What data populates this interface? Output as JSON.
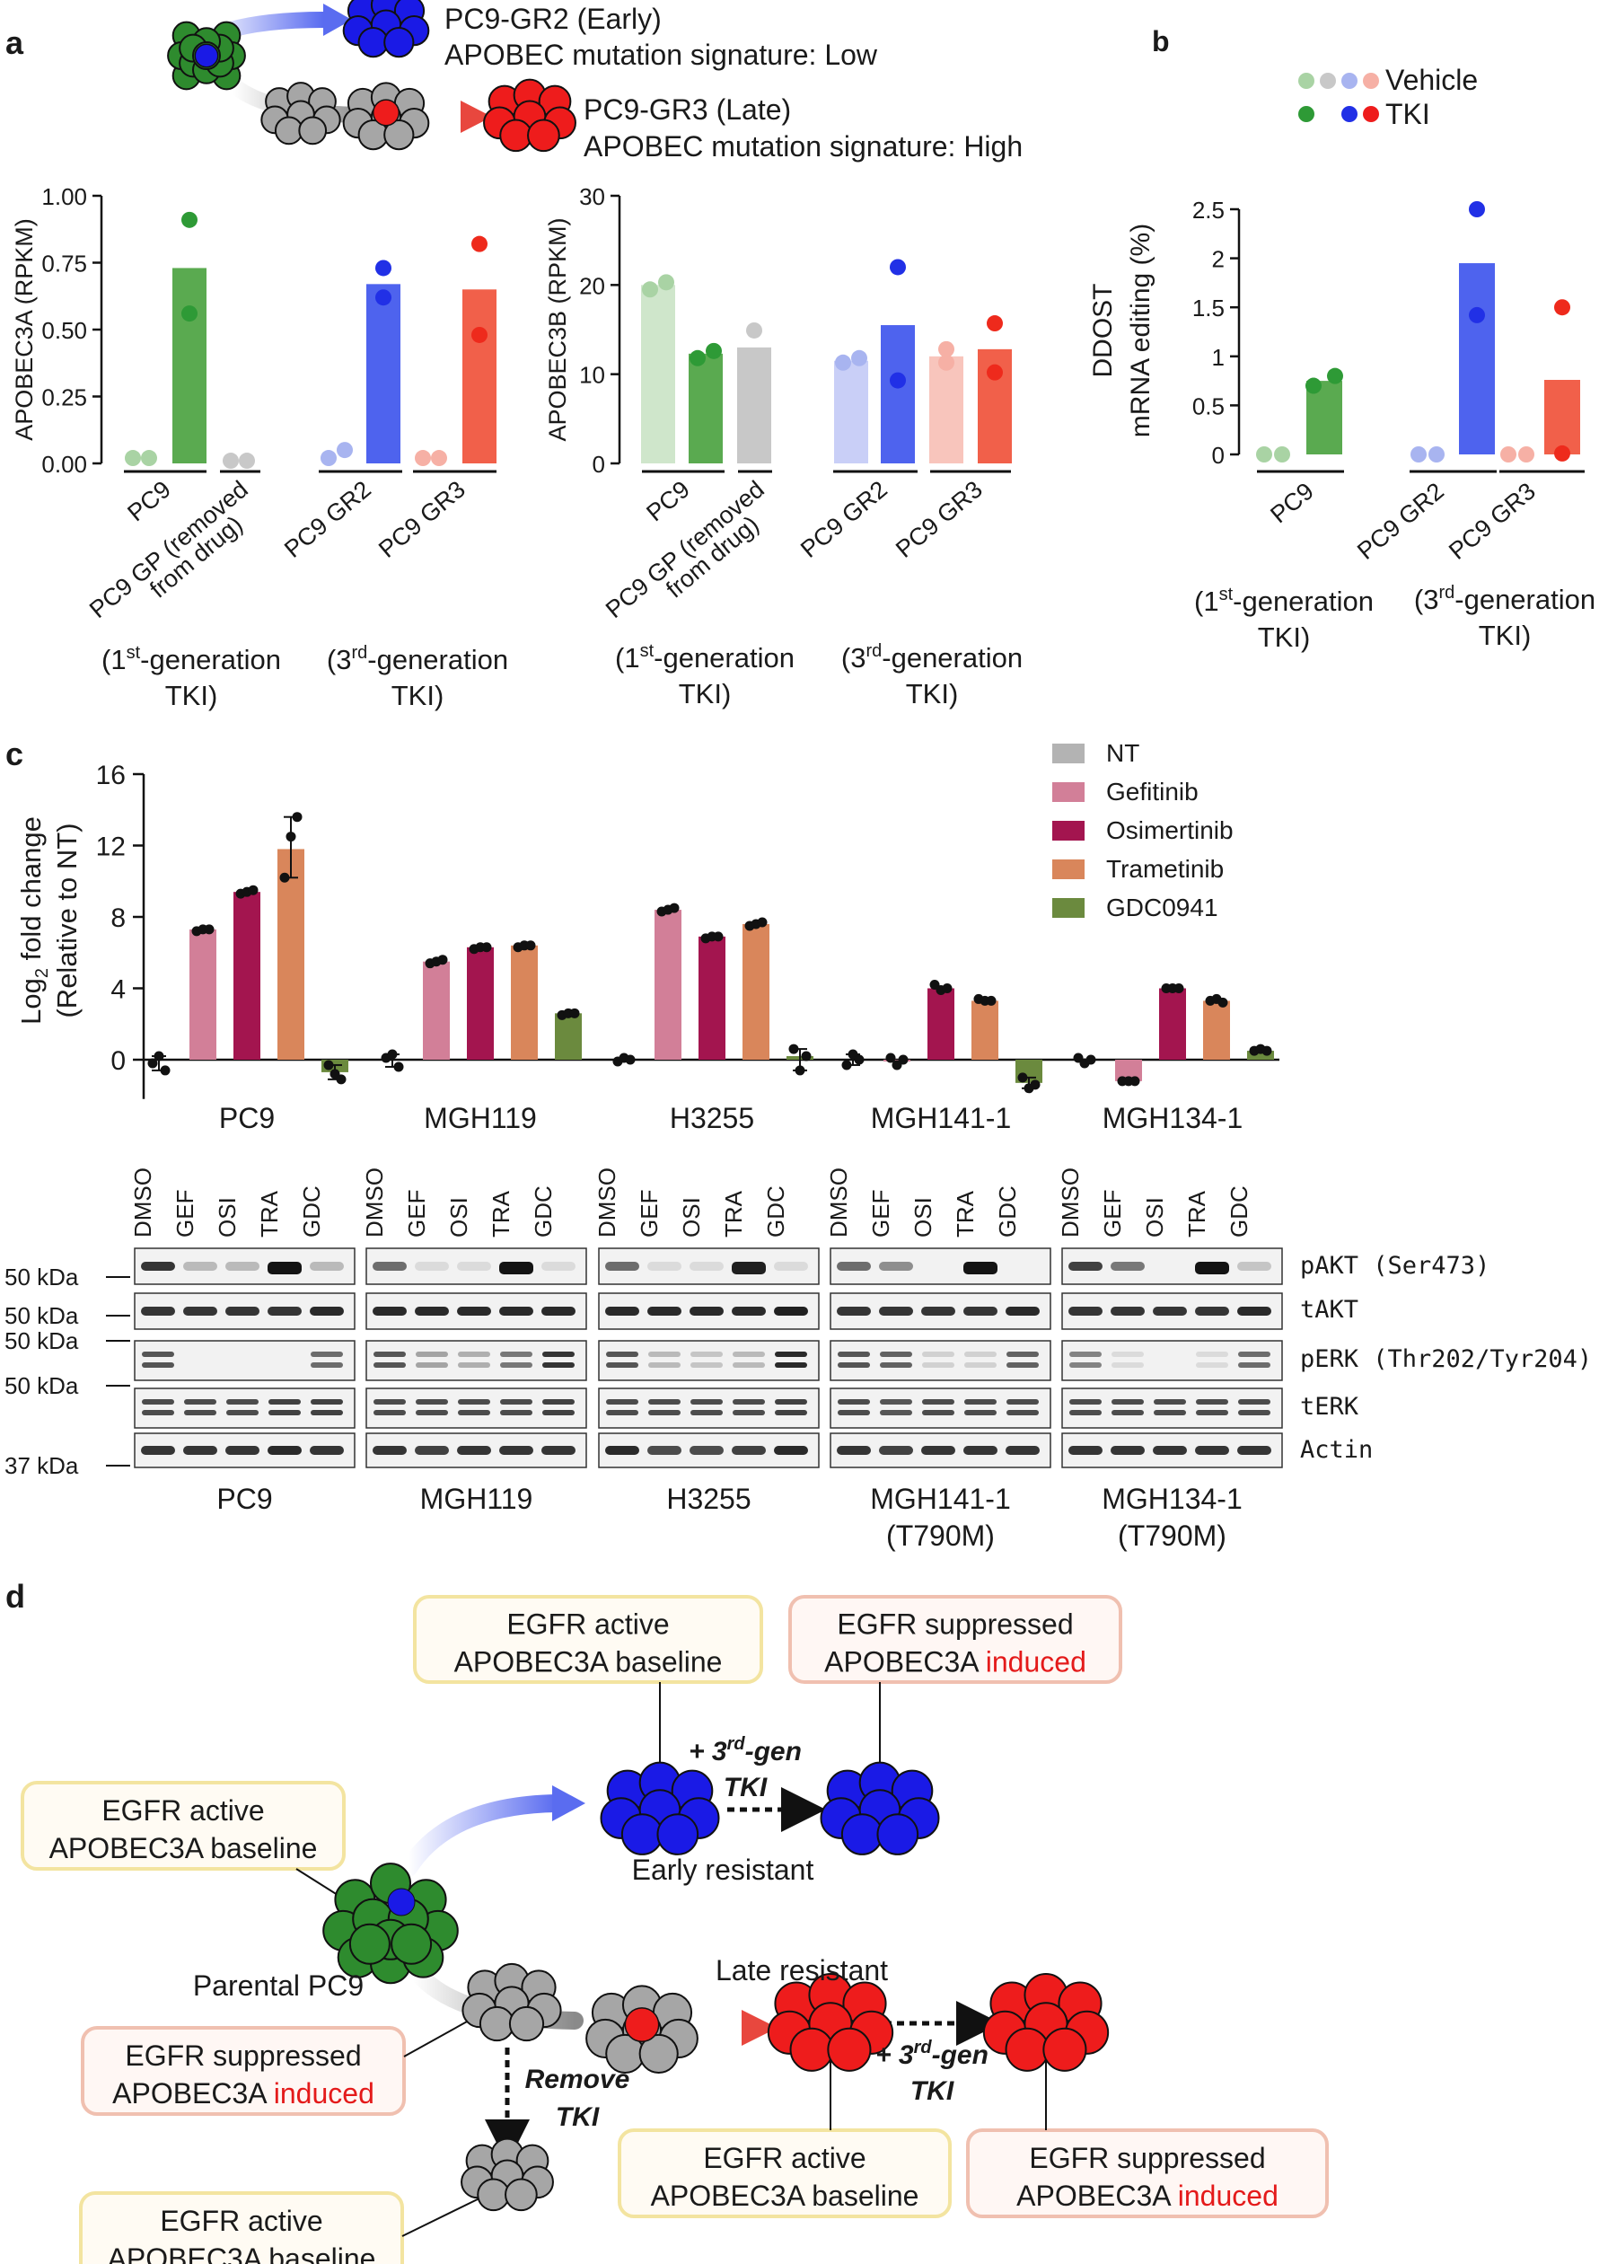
{
  "panel_labels": {
    "a": "a",
    "b": "b",
    "c": "c",
    "d": "d"
  },
  "schematic_a": {
    "early_title": "PC9-GR2 (Early)",
    "early_sig": "APOBEC mutation signature: Low",
    "late_title": "PC9-GR3 (Late)",
    "late_sig": "APOBEC mutation signature: High"
  },
  "legend_b": {
    "vehicle": "Vehicle",
    "tki": "TKI"
  },
  "groups": {
    "first_gen_line1": "(1",
    "first_gen_sup": "st",
    "first_gen_line1b": "-generation",
    "third_gen_line1": "(3",
    "third_gen_sup": "rd",
    "third_gen_line1b": "-generation",
    "tki_line2": "TKI)"
  },
  "chart_data": [
    {
      "type": "bar",
      "id": "a-left",
      "ylabel": "APOBEC3A (RPKM)",
      "ylim": [
        0,
        1.0
      ],
      "yticks": [
        "0.00",
        "0.25",
        "0.50",
        "0.75",
        "1.00"
      ],
      "categories": [
        "PC9",
        "PC9 GP (removed from drug)",
        "PC9 GR2",
        "PC9 GR3"
      ],
      "tick_labels": [
        "PC9",
        "PC9 GP (removed",
        "from drug)",
        "PC9 GR2",
        "PC9 GR3"
      ],
      "bars": [
        {
          "cat": "PC9",
          "cond": "Vehicle",
          "value": 0.0,
          "color": "#a9d3a4",
          "points": [
            0.02,
            0.02
          ]
        },
        {
          "cat": "PC9",
          "cond": "TKI",
          "value": 0.73,
          "color": "#5aaa50",
          "points": [
            0.56,
            0.91
          ]
        },
        {
          "cat": "PC9 GP",
          "cond": "Vehicle",
          "value": 0.0,
          "color": "#c8c8c8",
          "points": [
            0.01,
            0.01
          ]
        },
        {
          "cat": "PC9 GR2",
          "cond": "Vehicle",
          "value": 0.0,
          "color": "#a8b4f0",
          "points": [
            0.02,
            0.05
          ]
        },
        {
          "cat": "PC9 GR2",
          "cond": "TKI",
          "value": 0.67,
          "color": "#4e63ee",
          "points": [
            0.62,
            0.73
          ]
        },
        {
          "cat": "PC9 GR3",
          "cond": "Vehicle",
          "value": 0.0,
          "color": "#f6b0a5",
          "points": [
            0.02,
            0.02
          ]
        },
        {
          "cat": "PC9 GR3",
          "cond": "TKI",
          "value": 0.65,
          "color": "#f1604a",
          "points": [
            0.48,
            0.82
          ]
        }
      ]
    },
    {
      "type": "bar",
      "id": "a-right",
      "ylabel": "APOBEC3B (RPKM)",
      "ylim": [
        0,
        30
      ],
      "yticks": [
        "0",
        "10",
        "20",
        "30"
      ],
      "categories": [
        "PC9",
        "PC9 GP (removed from drug)",
        "PC9 GR2",
        "PC9 GR3"
      ],
      "tick_labels": [
        "PC9",
        "PC9 GP (removed",
        "from drug)",
        "PC9 GR2",
        "PC9 GR3"
      ],
      "bars": [
        {
          "cat": "PC9",
          "cond": "Vehicle",
          "value": 20,
          "color": "#cfe6cb",
          "points": [
            19.5,
            20.3
          ]
        },
        {
          "cat": "PC9",
          "cond": "TKI",
          "value": 12.3,
          "color": "#5aaa50",
          "points": [
            11.8,
            12.6
          ]
        },
        {
          "cat": "PC9 GP",
          "cond": "Vehicle",
          "value": 13.0,
          "color": "#c8c8c8",
          "points": [
            11.1,
            14.9
          ]
        },
        {
          "cat": "PC9 GR2",
          "cond": "Vehicle",
          "value": 11.5,
          "color": "#c9cff7",
          "points": [
            11.3,
            11.8
          ]
        },
        {
          "cat": "PC9 GR2",
          "cond": "TKI",
          "value": 15.5,
          "color": "#4e63ee",
          "points": [
            9.3,
            22.0
          ]
        },
        {
          "cat": "PC9 GR3",
          "cond": "Vehicle",
          "value": 12.0,
          "color": "#f8c5bc",
          "points": [
            11.3,
            12.8
          ]
        },
        {
          "cat": "PC9 GR3",
          "cond": "TKI",
          "value": 12.8,
          "color": "#f1604a",
          "points": [
            10.2,
            15.7
          ]
        }
      ]
    },
    {
      "type": "bar",
      "id": "b",
      "ylabel_line1": "DDOST",
      "ylabel_line2": "mRNA editing (%)",
      "ylim": [
        0,
        2.5
      ],
      "yticks": [
        "0",
        "0.5",
        "1",
        "1.5",
        "2",
        "2.5"
      ],
      "categories": [
        "PC9",
        "PC9 GR2",
        "PC9 GR3"
      ],
      "bars": [
        {
          "cat": "PC9",
          "cond": "Vehicle",
          "value": 0.0,
          "color": "#a9d3a4",
          "points": [
            0.0,
            0.0
          ]
        },
        {
          "cat": "PC9",
          "cond": "TKI",
          "value": 0.75,
          "color": "#5aaa50",
          "points": [
            0.7,
            0.8
          ]
        },
        {
          "cat": "PC9 GR2",
          "cond": "Vehicle",
          "value": 0.0,
          "color": "#a8b4f0",
          "points": [
            0.0,
            0.0
          ]
        },
        {
          "cat": "PC9 GR2",
          "cond": "TKI",
          "value": 1.95,
          "color": "#4e63ee",
          "points": [
            1.42,
            2.5
          ]
        },
        {
          "cat": "PC9 GR3",
          "cond": "Vehicle",
          "value": 0.0,
          "color": "#f6b0a5",
          "points": [
            0.0,
            0.0
          ]
        },
        {
          "cat": "PC9 GR3",
          "cond": "TKI",
          "value": 0.76,
          "color": "#f1604a",
          "points": [
            0.01,
            1.5
          ]
        }
      ]
    },
    {
      "type": "bar",
      "id": "c",
      "ylabel_line1": "Log",
      "ylabel_sub": "2",
      "ylabel_line1b": " fold change",
      "ylabel_line2": "(Relative to NT)",
      "ylim": [
        -2,
        16
      ],
      "yticks": [
        "0",
        "4",
        "8",
        "12",
        "16"
      ],
      "categories": [
        "PC9",
        "MGH119",
        "H3255",
        "MGH141-1",
        "MGH134-1"
      ],
      "legend": [
        "NT",
        "Gefitinib",
        "Osimertinib",
        "Trametinib",
        "GDC0941"
      ],
      "colors": [
        "#b3b3b3",
        "#d27f98",
        "#a3154f",
        "#d9865b",
        "#6b8a3e"
      ],
      "series": [
        {
          "name": "NT",
          "values": [
            0,
            0,
            0,
            0,
            0
          ]
        },
        {
          "name": "Gefitinib",
          "values": [
            7.3,
            5.5,
            8.4,
            -0.1,
            -1.2
          ]
        },
        {
          "name": "Osimertinib",
          "values": [
            9.4,
            6.3,
            6.9,
            4.0,
            4.0
          ]
        },
        {
          "name": "Trametinib",
          "values": [
            11.8,
            6.4,
            7.6,
            3.3,
            3.3
          ]
        },
        {
          "name": "GDC0941",
          "values": [
            -0.7,
            2.6,
            0.2,
            -1.3,
            0.5
          ]
        }
      ],
      "points": [
        [
          [
            -0.2,
            0.2,
            -0.6
          ],
          [
            7.2,
            7.3,
            7.3
          ],
          [
            9.3,
            9.4,
            9.5
          ],
          [
            10.2,
            12.5,
            13.6
          ],
          [
            -0.3,
            -0.8,
            -1.1
          ]
        ],
        [
          [
            0.1,
            0.3,
            -0.4
          ],
          [
            5.4,
            5.5,
            5.6
          ],
          [
            6.2,
            6.3,
            6.3
          ],
          [
            6.3,
            6.4,
            6.4
          ],
          [
            2.5,
            2.6,
            2.6
          ]
        ],
        [
          [
            -0.1,
            0.1,
            0.0
          ],
          [
            8.3,
            8.4,
            8.5
          ],
          [
            6.8,
            6.9,
            6.9
          ],
          [
            7.5,
            7.6,
            7.7
          ],
          [
            0.6,
            -0.6,
            0.2
          ]
        ],
        [
          [
            -0.3,
            0.3,
            0.0
          ],
          [
            0.1,
            -0.3,
            0.0
          ],
          [
            4.2,
            3.9,
            4.0
          ],
          [
            3.4,
            3.3,
            3.3
          ],
          [
            -1.0,
            -1.6,
            -1.4
          ]
        ],
        [
          [
            0.1,
            -0.2,
            0.0
          ],
          [
            -1.2,
            -1.2,
            -1.2
          ],
          [
            4.0,
            4.0,
            4.0
          ],
          [
            3.3,
            3.4,
            3.2
          ],
          [
            0.5,
            0.6,
            0.5
          ]
        ]
      ]
    }
  ],
  "blot": {
    "lanes": [
      "DMSO",
      "GEF",
      "OSI",
      "TRA",
      "GDC"
    ],
    "markers": [
      "50 kDa",
      "50 kDa",
      "50 kDa",
      "50 kDa",
      "37 kDa"
    ],
    "rows": [
      "pAKT (Ser473)",
      "tAKT",
      "pERK (Thr202/Tyr204)",
      "tERK",
      "Actin"
    ],
    "cell_lines": [
      {
        "name": "PC9",
        "sub": ""
      },
      {
        "name": "MGH119",
        "sub": ""
      },
      {
        "name": "H3255",
        "sub": ""
      },
      {
        "name": "MGH141-1",
        "sub": "(T790M)"
      },
      {
        "name": "MGH134-1",
        "sub": "(T790M)"
      }
    ]
  },
  "schematic_d": {
    "egfr_active": "EGFR active",
    "apobec_baseline": "APOBEC3A baseline",
    "egfr_suppressed": "EGFR suppressed",
    "apobec_prefix": "APOBEC3A ",
    "induced": "induced",
    "tki_plus": "+ 3",
    "tki_sup": "rd",
    "tki_gen": "-gen",
    "tki_word": "TKI",
    "early_resistant": "Early resistant",
    "late_resistant": "Late resistant",
    "parental": "Parental PC9",
    "remove": "Remove",
    "remove_tki": "TKI"
  },
  "colors": {
    "green": "#2e8b2e",
    "blue": "#1a1ae6",
    "red": "#ee1c1c",
    "grey": "#a6a6a6",
    "yellow_box": "#f3e7a5",
    "pink_box": "#f0c3b4"
  }
}
